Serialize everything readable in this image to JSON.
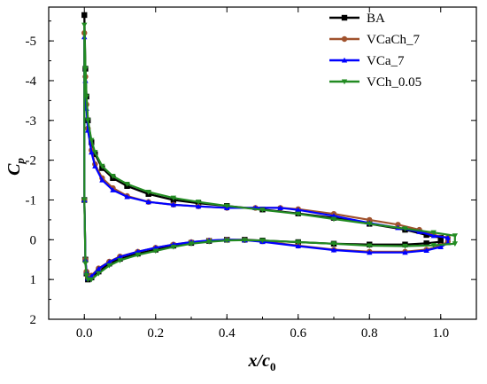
{
  "chart_data": {
    "type": "line",
    "xlabel": "x/c",
    "xlabel_sub": "0",
    "ylabel": "C",
    "ylabel_sub": "p",
    "xlim": [
      -0.1,
      1.1
    ],
    "ylim": [
      2.0,
      -5.85
    ],
    "y_inverted": true,
    "grid": false,
    "legend_position": "top-right",
    "xticks": [
      0.0,
      0.2,
      0.4,
      0.6,
      0.8,
      1.0
    ],
    "xtick_labels": [
      "0.0",
      "0.2",
      "0.4",
      "0.6",
      "0.8",
      "1.0"
    ],
    "yticks": [
      -5,
      -4,
      -3,
      -2,
      -1,
      0,
      1,
      2
    ],
    "ytick_labels": [
      "-5",
      "-4",
      "-3",
      "-2",
      "-1",
      "0",
      "1",
      "2"
    ],
    "series": [
      {
        "name": "BA",
        "color": "#000000",
        "marker": "square",
        "upper": [
          [
            0.0,
            -5.65
          ],
          [
            0.003,
            -4.3
          ],
          [
            0.006,
            -3.6
          ],
          [
            0.01,
            -3.0
          ],
          [
            0.02,
            -2.45
          ],
          [
            0.03,
            -2.15
          ],
          [
            0.05,
            -1.8
          ],
          [
            0.08,
            -1.55
          ],
          [
            0.12,
            -1.35
          ],
          [
            0.18,
            -1.15
          ],
          [
            0.25,
            -1.0
          ],
          [
            0.32,
            -0.92
          ],
          [
            0.4,
            -0.85
          ],
          [
            0.5,
            -0.76
          ],
          [
            0.6,
            -0.66
          ],
          [
            0.7,
            -0.55
          ],
          [
            0.8,
            -0.4
          ],
          [
            0.9,
            -0.25
          ],
          [
            0.96,
            -0.12
          ],
          [
            1.0,
            -0.05
          ]
        ],
        "lower": [
          [
            0.0,
            -1.0
          ],
          [
            0.003,
            0.5
          ],
          [
            0.006,
            0.85
          ],
          [
            0.01,
            1.0
          ],
          [
            0.02,
            0.95
          ],
          [
            0.04,
            0.8
          ],
          [
            0.07,
            0.6
          ],
          [
            0.1,
            0.48
          ],
          [
            0.15,
            0.35
          ],
          [
            0.2,
            0.25
          ],
          [
            0.25,
            0.15
          ],
          [
            0.3,
            0.08
          ],
          [
            0.35,
            0.03
          ],
          [
            0.4,
            0.0
          ],
          [
            0.45,
            0.0
          ],
          [
            0.5,
            0.02
          ],
          [
            0.6,
            0.06
          ],
          [
            0.7,
            0.1
          ],
          [
            0.8,
            0.12
          ],
          [
            0.9,
            0.12
          ],
          [
            0.96,
            0.09
          ],
          [
            1.0,
            0.05
          ]
        ]
      },
      {
        "name": "VCaCh_7",
        "color": "#a0522d",
        "marker": "circle",
        "upper": [
          [
            0.0,
            -5.2
          ],
          [
            0.003,
            -4.1
          ],
          [
            0.006,
            -3.4
          ],
          [
            0.01,
            -2.8
          ],
          [
            0.02,
            -2.25
          ],
          [
            0.03,
            -1.9
          ],
          [
            0.05,
            -1.55
          ],
          [
            0.08,
            -1.3
          ],
          [
            0.12,
            -1.1
          ],
          [
            0.18,
            -0.95
          ],
          [
            0.25,
            -0.88
          ],
          [
            0.32,
            -0.84
          ],
          [
            0.4,
            -0.8
          ],
          [
            0.48,
            -0.8
          ],
          [
            0.55,
            -0.8
          ],
          [
            0.6,
            -0.77
          ],
          [
            0.7,
            -0.65
          ],
          [
            0.8,
            -0.5
          ],
          [
            0.88,
            -0.38
          ],
          [
            0.94,
            -0.25
          ],
          [
            0.98,
            -0.12
          ],
          [
            1.02,
            -0.05
          ]
        ],
        "lower": [
          [
            0.0,
            -1.0
          ],
          [
            0.003,
            0.5
          ],
          [
            0.006,
            0.8
          ],
          [
            0.01,
            0.95
          ],
          [
            0.02,
            0.9
          ],
          [
            0.04,
            0.72
          ],
          [
            0.07,
            0.55
          ],
          [
            0.1,
            0.42
          ],
          [
            0.15,
            0.3
          ],
          [
            0.2,
            0.2
          ],
          [
            0.25,
            0.12
          ],
          [
            0.3,
            0.06
          ],
          [
            0.35,
            0.02
          ],
          [
            0.4,
            0.0
          ],
          [
            0.45,
            0.01
          ],
          [
            0.5,
            0.04
          ],
          [
            0.6,
            0.15
          ],
          [
            0.7,
            0.25
          ],
          [
            0.8,
            0.3
          ],
          [
            0.9,
            0.3
          ],
          [
            0.96,
            0.25
          ],
          [
            1.0,
            0.15
          ],
          [
            1.02,
            0.05
          ]
        ]
      },
      {
        "name": "VCa_7",
        "color": "#0000ff",
        "marker": "triangle",
        "upper": [
          [
            0.0,
            -5.1
          ],
          [
            0.003,
            -4.0
          ],
          [
            0.006,
            -3.3
          ],
          [
            0.01,
            -2.75
          ],
          [
            0.02,
            -2.2
          ],
          [
            0.03,
            -1.85
          ],
          [
            0.05,
            -1.5
          ],
          [
            0.08,
            -1.25
          ],
          [
            0.12,
            -1.08
          ],
          [
            0.18,
            -0.95
          ],
          [
            0.25,
            -0.88
          ],
          [
            0.32,
            -0.84
          ],
          [
            0.4,
            -0.8
          ],
          [
            0.48,
            -0.8
          ],
          [
            0.55,
            -0.8
          ],
          [
            0.6,
            -0.75
          ],
          [
            0.7,
            -0.6
          ],
          [
            0.8,
            -0.42
          ],
          [
            0.88,
            -0.3
          ],
          [
            0.94,
            -0.2
          ],
          [
            0.98,
            -0.1
          ],
          [
            1.02,
            -0.05
          ]
        ],
        "lower": [
          [
            0.0,
            -1.0
          ],
          [
            0.003,
            0.5
          ],
          [
            0.006,
            0.82
          ],
          [
            0.01,
            0.97
          ],
          [
            0.02,
            0.92
          ],
          [
            0.04,
            0.73
          ],
          [
            0.07,
            0.56
          ],
          [
            0.1,
            0.43
          ],
          [
            0.15,
            0.3
          ],
          [
            0.2,
            0.2
          ],
          [
            0.25,
            0.12
          ],
          [
            0.3,
            0.06
          ],
          [
            0.35,
            0.02
          ],
          [
            0.4,
            0.0
          ],
          [
            0.45,
            0.01
          ],
          [
            0.5,
            0.05
          ],
          [
            0.6,
            0.16
          ],
          [
            0.7,
            0.26
          ],
          [
            0.8,
            0.32
          ],
          [
            0.9,
            0.32
          ],
          [
            0.96,
            0.27
          ],
          [
            1.0,
            0.18
          ],
          [
            1.02,
            0.08
          ]
        ]
      },
      {
        "name": "VCh_0.05",
        "color": "#228b22",
        "marker": "triangle-down",
        "upper": [
          [
            0.0,
            -5.4
          ],
          [
            0.003,
            -4.3
          ],
          [
            0.006,
            -3.6
          ],
          [
            0.01,
            -3.0
          ],
          [
            0.02,
            -2.5
          ],
          [
            0.03,
            -2.2
          ],
          [
            0.05,
            -1.85
          ],
          [
            0.08,
            -1.6
          ],
          [
            0.12,
            -1.4
          ],
          [
            0.18,
            -1.2
          ],
          [
            0.25,
            -1.05
          ],
          [
            0.32,
            -0.95
          ],
          [
            0.4,
            -0.85
          ],
          [
            0.5,
            -0.75
          ],
          [
            0.6,
            -0.65
          ],
          [
            0.7,
            -0.52
          ],
          [
            0.8,
            -0.4
          ],
          [
            0.9,
            -0.28
          ],
          [
            0.98,
            -0.18
          ],
          [
            1.04,
            -0.1
          ]
        ],
        "lower": [
          [
            0.0,
            -1.0
          ],
          [
            0.003,
            0.6
          ],
          [
            0.006,
            0.9
          ],
          [
            0.01,
            1.0
          ],
          [
            0.02,
            1.0
          ],
          [
            0.04,
            0.85
          ],
          [
            0.07,
            0.65
          ],
          [
            0.1,
            0.52
          ],
          [
            0.15,
            0.38
          ],
          [
            0.2,
            0.28
          ],
          [
            0.25,
            0.18
          ],
          [
            0.3,
            0.1
          ],
          [
            0.35,
            0.05
          ],
          [
            0.4,
            0.02
          ],
          [
            0.45,
            0.01
          ],
          [
            0.5,
            0.02
          ],
          [
            0.6,
            0.06
          ],
          [
            0.7,
            0.1
          ],
          [
            0.8,
            0.15
          ],
          [
            0.9,
            0.16
          ],
          [
            0.98,
            0.14
          ],
          [
            1.04,
            0.1
          ]
        ]
      }
    ]
  }
}
